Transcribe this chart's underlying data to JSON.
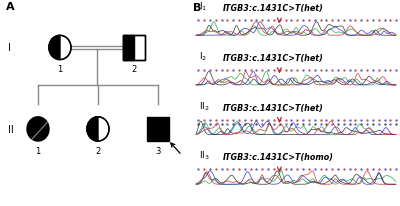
{
  "bg_color": "#ffffff",
  "panel_A_label": "A",
  "panel_B_label": "B",
  "colors": {
    "black": "#000000",
    "dark_gray": "#555555",
    "line_gray": "#888888",
    "red_arrow": "#cc2222",
    "trace_green": "#22aa44",
    "trace_blue": "#3333cc",
    "trace_black": "#333333",
    "trace_red": "#cc3333",
    "dot_blue": "#5555cc",
    "dot_red": "#cc4444",
    "dot_green": "#449944",
    "dot_black": "#444444"
  },
  "seq_panels": [
    {
      "gen": "I",
      "num": "1",
      "label": "ITGB3:c.1431C>T(het)",
      "homo": false,
      "dot_rows": 1
    },
    {
      "gen": "I",
      "num": "2",
      "label": "ITGB3:c.1431C>T(het)",
      "homo": false,
      "dot_rows": 1
    },
    {
      "gen": "II",
      "num": "2",
      "label": "ITGB3:c.1431C>T(het)",
      "homo": false,
      "dot_rows": 2
    },
    {
      "gen": "II",
      "num": "3",
      "label": "ITGB3:c.1431C>T(homo)",
      "homo": true,
      "dot_rows": 1
    }
  ]
}
